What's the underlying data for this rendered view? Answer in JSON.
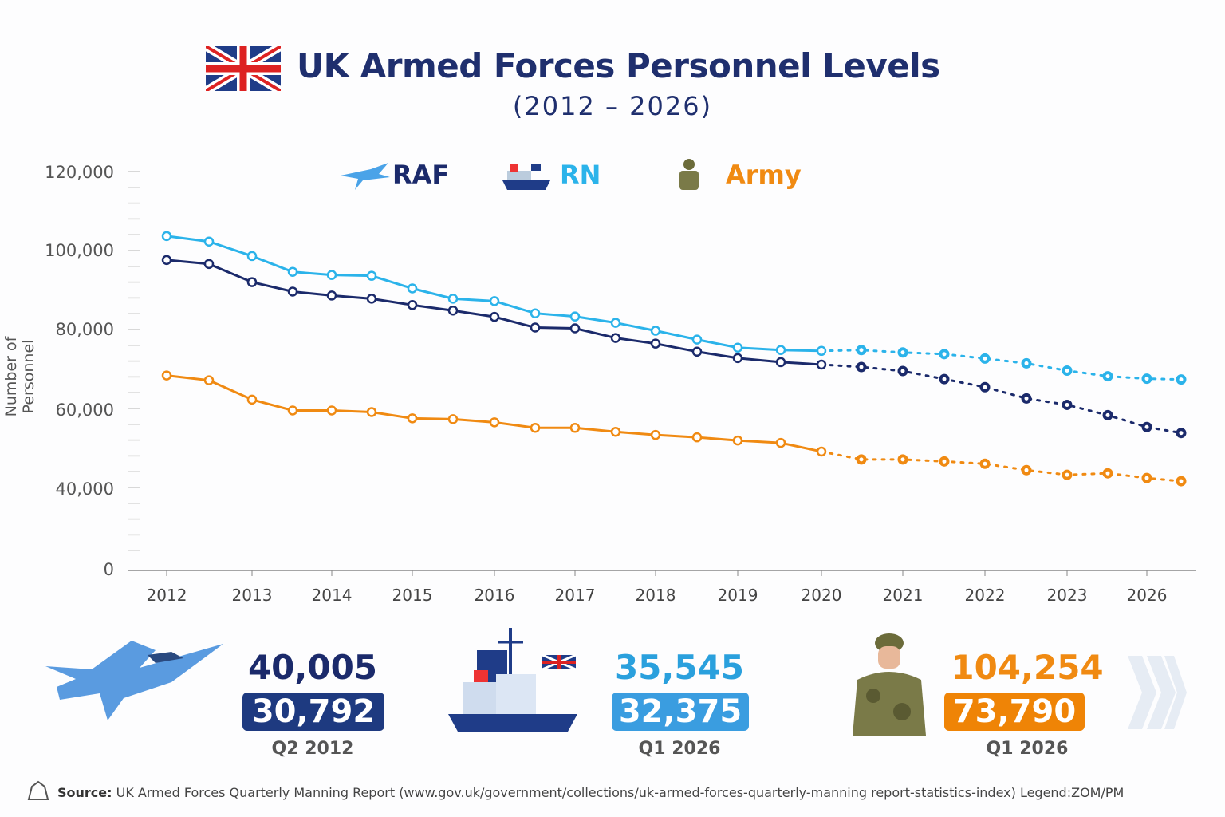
{
  "header": {
    "title": "UK Armed Forces Personnel Levels",
    "subtitle": "(2012 – 2026)"
  },
  "colors": {
    "raf": "#1b2a6b",
    "rn": "#2bb3ea",
    "army": "#f08a12",
    "navy_title": "#1f2f6e"
  },
  "icons": {
    "flag": "union-jack-icon",
    "raf": "fighter-jet-icon",
    "rn": "ship-icon",
    "army": "soldier-icon"
  },
  "chart_data": {
    "type": "line",
    "ylabel": "Number of Personnel",
    "ylim": [
      0,
      120000
    ],
    "yticks": [
      0,
      40000,
      60000,
      80000,
      100000,
      120000
    ],
    "ytick_labels": [
      "0",
      "40,000",
      "60,000",
      "80,000",
      "100,000",
      "120,000"
    ],
    "xtick_labels": [
      "2012",
      "2013",
      "2014",
      "2015",
      "2016",
      "2017",
      "2018",
      "2019",
      "2020",
      "2021",
      "2022",
      "2023",
      "2026"
    ],
    "actual_points": 17,
    "legend_position": "top",
    "series": [
      {
        "name": "RAF",
        "color": "#1b2a6b",
        "values": [
          97400,
          96400,
          91800,
          89400,
          88400,
          87600,
          86000,
          84600,
          83000,
          80300,
          80100,
          77700,
          76300,
          74300,
          72700,
          71700,
          71100,
          70500,
          69500,
          67500,
          65500,
          62700,
          61100,
          58500,
          55500,
          54000
        ]
      },
      {
        "name": "RN",
        "color": "#2bb3ea",
        "values": [
          103500,
          102100,
          98400,
          94400,
          93600,
          93400,
          90200,
          87600,
          87000,
          83900,
          83100,
          81500,
          79500,
          77300,
          75300,
          74700,
          74500,
          74700,
          74100,
          73700,
          72600,
          71400,
          69600,
          68200,
          67600,
          67400
        ]
      },
      {
        "name": "Army",
        "color": "#f08a12",
        "values": [
          68400,
          67200,
          62400,
          59700,
          59700,
          59300,
          57700,
          57500,
          56700,
          55300,
          55300,
          54300,
          53500,
          52900,
          52100,
          51500,
          49300,
          47300,
          47300,
          46800,
          46200,
          44600,
          43400,
          43800,
          42600,
          41800
        ]
      }
    ]
  },
  "cards": [
    {
      "name": "RAF",
      "top": "40,005",
      "value": "30,792",
      "period": "Q2 2012",
      "color": "#1b2a6b",
      "pill": "#1e3a80"
    },
    {
      "name": "RN",
      "top": "35,545",
      "value": "32,375",
      "period": "Q1 2026",
      "color": "#2aa0dd",
      "pill": "#3a9de0"
    },
    {
      "name": "Army",
      "top": "104,254",
      "value": "73,790",
      "period": "Q1 2026",
      "color": "#f08a12",
      "pill": "#ef8406"
    }
  ],
  "footer": {
    "source_label": "Source:",
    "source_text": " UK Armed Forces Quarterly Manning Report (www.gov.uk/government/collections/uk-armed-forces-quarterly-manning report-statistics-index) Legend:ZOM/PM"
  }
}
